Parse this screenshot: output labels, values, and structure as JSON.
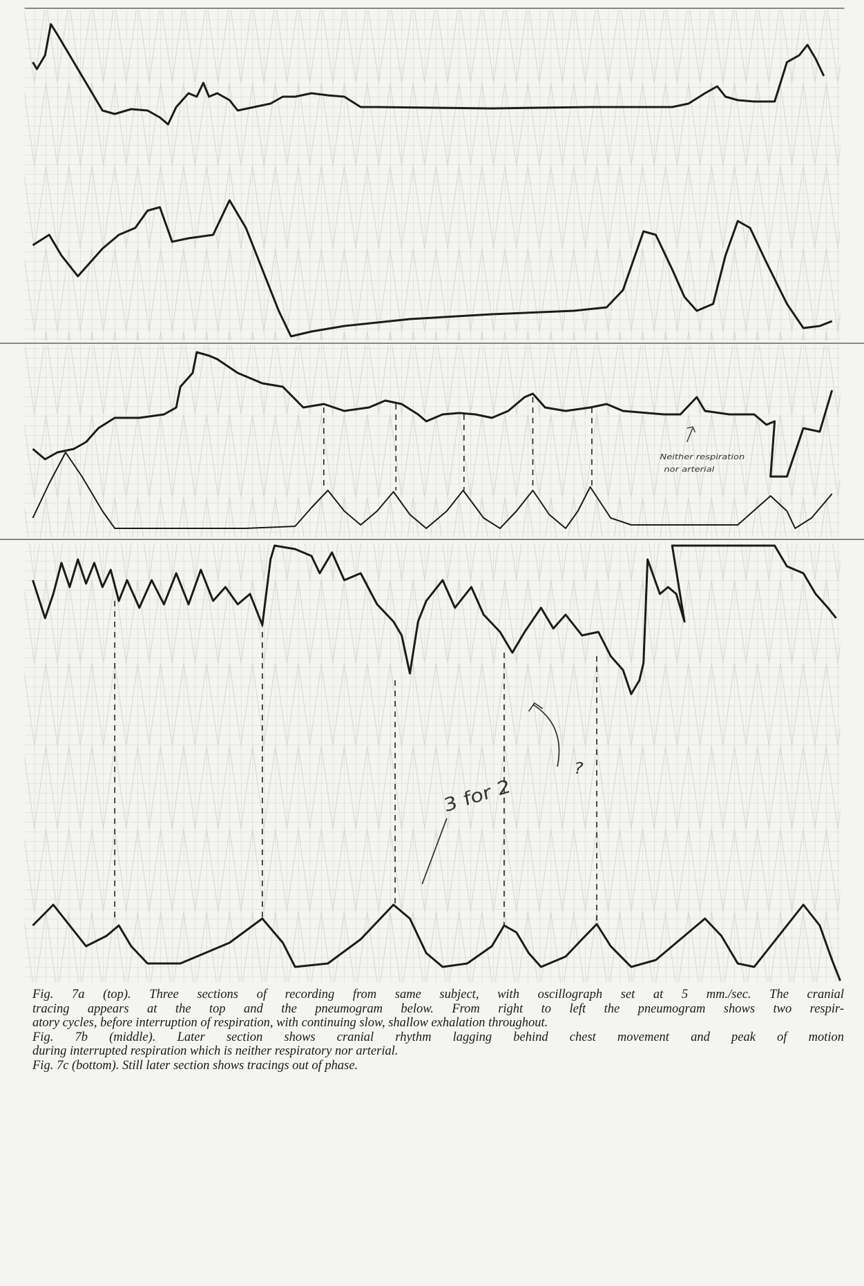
{
  "figure": {
    "annotations": {
      "panel_b": [
        "Neither respiration",
        "nor arterial"
      ],
      "panel_c": [
        "3 for 2",
        "?"
      ]
    }
  },
  "caption": {
    "lines": [
      "Fig. 7a (top). Three sections of recording from same subject, with oscillograph set at 5 mm./sec. The cranial",
      "tracing appears at the top and the pneumogram below. From right to left the pneumogram shows two respir-",
      "atory cycles, before interruption of respiration, with continuing slow, shallow exhalation throughout.",
      "Fig. 7b (middle). Later section shows cranial rhythm lagging behind chest movement and peak of motion",
      "during interrupted respiration which is neither respiratory nor arterial.",
      "Fig. 7c (bottom). Still later section shows tracings out of phase."
    ]
  }
}
